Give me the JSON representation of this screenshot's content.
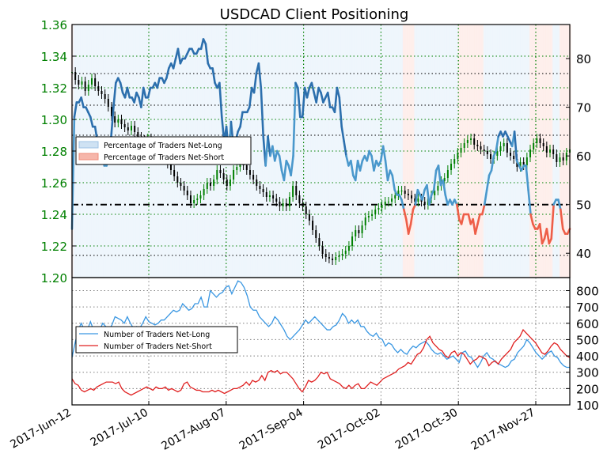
{
  "chart_data": {
    "type": "line",
    "title": "USDCAD Client Positioning",
    "x_labels": [
      "2017-Jun-12",
      "2017-Jul-10",
      "2017-Aug-07",
      "2017-Sep-04",
      "2017-Oct-02",
      "2017-Oct-30",
      "2017-Nov-27"
    ],
    "top_panel": {
      "price_axis": {
        "ticks": [
          1.2,
          1.22,
          1.24,
          1.26,
          1.28,
          1.3,
          1.32,
          1.34,
          1.36
        ],
        "tick_labels": [
          "1.20",
          "1.22",
          "1.24",
          "1.26",
          "1.28",
          "1.30",
          "1.32",
          "1.34",
          "1.36"
        ],
        "range": [
          1.2,
          1.36
        ],
        "color": "#008000"
      },
      "pct_axis": {
        "ticks": [
          40,
          50,
          60,
          70,
          80
        ],
        "tick_labels": [
          "40",
          "50",
          "60",
          "70",
          "80"
        ],
        "range": [
          35,
          87
        ]
      },
      "legend": {
        "position": "left",
        "entries": [
          "Percentage of Traders Net-Long",
          "Percentage of Traders Net-Short"
        ]
      },
      "reference_lines": {
        "pct_50": 50,
        "price_levels": [
          1.214,
          1.29,
          1.309,
          1.329
        ]
      },
      "percentage_net_long": [
        45,
        68,
        71,
        71,
        72,
        70,
        70,
        69,
        68,
        66,
        66,
        63,
        60,
        62,
        58,
        58,
        60,
        64,
        70,
        75,
        76,
        75,
        73,
        72,
        74,
        72,
        72,
        71,
        73,
        72,
        70,
        74,
        72,
        72,
        74,
        74,
        75,
        74,
        76,
        76,
        75,
        76,
        78,
        79,
        78,
        80,
        82,
        79,
        80,
        80,
        81,
        82,
        82,
        81,
        81,
        82,
        82,
        84,
        83,
        79,
        78,
        78,
        75,
        74,
        75,
        68,
        63,
        66,
        60,
        67,
        62,
        63,
        65,
        66,
        69,
        69,
        69,
        70,
        74,
        73,
        77,
        79,
        74,
        64,
        58,
        64,
        60,
        62,
        59,
        61,
        60,
        57,
        55,
        59,
        58,
        56,
        60,
        75,
        74,
        68,
        68,
        74,
        72,
        74,
        75,
        73,
        71,
        74,
        73,
        71,
        72,
        73,
        70,
        70,
        69,
        74,
        72,
        66,
        63,
        60,
        58,
        59,
        56,
        55,
        59,
        57,
        59,
        60,
        59,
        61,
        60,
        57,
        59,
        58,
        59,
        62,
        59,
        55,
        57,
        56,
        53,
        52,
        52,
        51,
        49,
        47,
        44,
        46,
        49,
        50,
        53,
        52,
        51,
        53,
        54,
        50,
        52,
        53,
        57,
        58,
        54,
        55,
        52,
        50,
        51,
        50,
        51,
        50,
        47,
        46,
        48,
        48,
        48,
        46,
        47,
        44,
        46,
        48,
        48,
        50,
        53,
        56,
        57,
        60,
        61,
        64,
        65,
        64,
        65,
        64,
        63,
        62,
        65,
        59,
        58,
        57,
        58,
        58,
        53,
        48,
        46,
        45,
        45,
        46,
        42,
        43,
        45,
        42,
        43,
        50,
        51,
        51,
        49,
        45,
        44,
        44,
        45
      ],
      "price_ohlc_close": [
        1.33,
        1.325,
        1.322,
        1.324,
        1.318,
        1.322,
        1.326,
        1.321,
        1.318,
        1.316,
        1.313,
        1.308,
        1.302,
        1.298,
        1.3,
        1.297,
        1.295,
        1.293,
        1.296,
        1.292,
        1.289,
        1.287,
        1.285,
        1.288,
        1.285,
        1.283,
        1.279,
        1.277,
        1.275,
        1.272,
        1.268,
        1.264,
        1.26,
        1.258,
        1.255,
        1.252,
        1.247,
        1.249,
        1.25,
        1.252,
        1.256,
        1.26,
        1.258,
        1.262,
        1.268,
        1.266,
        1.262,
        1.258,
        1.262,
        1.268,
        1.27,
        1.274,
        1.271,
        1.268,
        1.265,
        1.262,
        1.258,
        1.256,
        1.254,
        1.251,
        1.252,
        1.25,
        1.248,
        1.245,
        1.247,
        1.245,
        1.251,
        1.258,
        1.252,
        1.247,
        1.245,
        1.24,
        1.236,
        1.23,
        1.225,
        1.22,
        1.215,
        1.213,
        1.212,
        1.211,
        1.213,
        1.214,
        1.215,
        1.217,
        1.22,
        1.226,
        1.23,
        1.228,
        1.233,
        1.238,
        1.239,
        1.24,
        1.243,
        1.244,
        1.246,
        1.248,
        1.248,
        1.25,
        1.252,
        1.255,
        1.255,
        1.253,
        1.252,
        1.25,
        1.248,
        1.25,
        1.248,
        1.246,
        1.25,
        1.252,
        1.255,
        1.258,
        1.261,
        1.263,
        1.268,
        1.272,
        1.275,
        1.279,
        1.282,
        1.285,
        1.287,
        1.288,
        1.284,
        1.283,
        1.281,
        1.28,
        1.278,
        1.275,
        1.277,
        1.28,
        1.283,
        1.285,
        1.279,
        1.277,
        1.275,
        1.27,
        1.273,
        1.271,
        1.276,
        1.281,
        1.285,
        1.288,
        1.285,
        1.283,
        1.279,
        1.281,
        1.278,
        1.273,
        1.276,
        1.274,
        1.279,
        1.281
      ]
    },
    "bottom_panel": {
      "count_axis": {
        "ticks": [
          100,
          200,
          300,
          400,
          500,
          600,
          700,
          800
        ],
        "tick_labels": [
          "100",
          "200",
          "300",
          "400",
          "500",
          "600",
          "700",
          "800"
        ],
        "range": [
          100,
          880
        ]
      },
      "legend": {
        "position": "left",
        "entries": [
          "Number of Traders Net-Long",
          "Number of Traders Net-Short"
        ]
      },
      "net_long": [
        390,
        480,
        560,
        600,
        560,
        560,
        610,
        560,
        560,
        560,
        600,
        580,
        560,
        590,
        640,
        630,
        620,
        600,
        640,
        600,
        570,
        580,
        570,
        600,
        640,
        610,
        600,
        590,
        600,
        620,
        620,
        640,
        660,
        680,
        670,
        680,
        720,
        700,
        680,
        690,
        720,
        720,
        760,
        700,
        700,
        800,
        780,
        760,
        780,
        790,
        820,
        830,
        780,
        820,
        860,
        850,
        820,
        770,
        700,
        680,
        680,
        640,
        620,
        600,
        580,
        600,
        640,
        620,
        590,
        560,
        520,
        500,
        520,
        540,
        560,
        590,
        620,
        600,
        620,
        640,
        620,
        600,
        580,
        560,
        560,
        580,
        590,
        620,
        660,
        640,
        600,
        620,
        600,
        620,
        580,
        580,
        550,
        530,
        520,
        540,
        510,
        500,
        460,
        480,
        470,
        440,
        420,
        440,
        420,
        410,
        440,
        460,
        450,
        470,
        480,
        490,
        470,
        440,
        420,
        410,
        420,
        400,
        380,
        390,
        400,
        380,
        360,
        420,
        430,
        400,
        390,
        360,
        330,
        360,
        400,
        420,
        390,
        380,
        360,
        350,
        340,
        330,
        340,
        370,
        380,
        420,
        440,
        460,
        500,
        480,
        450,
        420,
        400,
        380,
        400,
        420,
        430,
        400,
        390,
        360,
        340,
        330,
        330
      ],
      "net_short": [
        260,
        230,
        220,
        190,
        180,
        190,
        200,
        190,
        210,
        220,
        230,
        240,
        240,
        240,
        230,
        240,
        200,
        180,
        170,
        160,
        170,
        180,
        190,
        200,
        210,
        200,
        190,
        210,
        200,
        200,
        210,
        190,
        200,
        190,
        180,
        190,
        230,
        240,
        210,
        200,
        190,
        190,
        180,
        180,
        180,
        190,
        180,
        190,
        180,
        170,
        180,
        190,
        200,
        200,
        210,
        220,
        240,
        220,
        250,
        240,
        250,
        280,
        250,
        300,
        310,
        300,
        310,
        290,
        300,
        300,
        280,
        260,
        230,
        200,
        180,
        210,
        250,
        240,
        250,
        270,
        300,
        290,
        300,
        260,
        250,
        240,
        230,
        210,
        200,
        220,
        200,
        220,
        230,
        200,
        200,
        220,
        240,
        230,
        220,
        240,
        260,
        270,
        280,
        290,
        300,
        320,
        330,
        340,
        360,
        350,
        380,
        410,
        420,
        450,
        500,
        520,
        480,
        460,
        440,
        430,
        400,
        390,
        420,
        430,
        400,
        420,
        410,
        380,
        350,
        370,
        380,
        400,
        390,
        380,
        340,
        360,
        370,
        350,
        380,
        400,
        420,
        440,
        480,
        500,
        520,
        560,
        540,
        520,
        500,
        480,
        450,
        420,
        410,
        430,
        460,
        480,
        470,
        440,
        420,
        400,
        390
      ]
    }
  }
}
